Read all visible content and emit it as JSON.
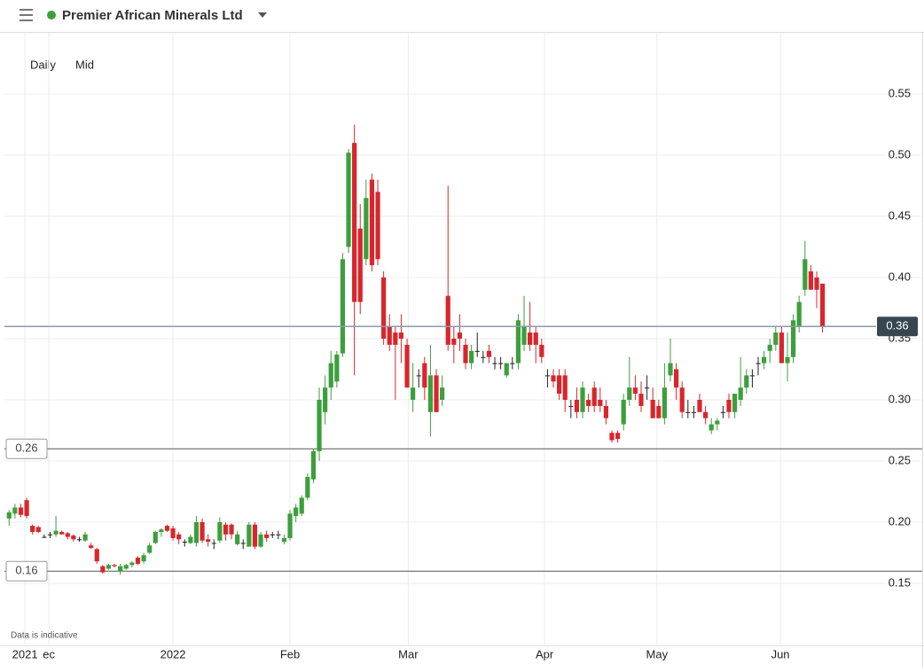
{
  "header": {
    "title": "Premier African Minerals Ltd"
  },
  "controls": {
    "interval": "Daily",
    "price": "Mid"
  },
  "chart_data": {
    "type": "candlestick",
    "note": "Data is indicative",
    "up_color": "#3c9f3c",
    "down_color": "#d8262c",
    "doji_color": "#222222",
    "grid": true,
    "ylim": [
      0.1,
      0.6
    ],
    "yticks": [
      0.15,
      {
        "value": 0.2,
        "label": "0.20"
      },
      0.25,
      {
        "value": 0.3,
        "label": "0.30"
      },
      0.35,
      {
        "value": 0.4,
        "label": "0.40"
      },
      0.45,
      {
        "value": 0.5,
        "label": "0.50"
      },
      0.55
    ],
    "xlim": [
      -28.8,
      119.7
    ],
    "xticks": [
      {
        "value": -25.3,
        "label": "2021"
      },
      {
        "value": -21.2,
        "label": "ec"
      },
      {
        "value": 0,
        "label": "2022"
      },
      {
        "value": 20,
        "label": "Feb"
      },
      {
        "value": 40.2,
        "label": "Mar"
      },
      {
        "value": 63.5,
        "label": "Apr"
      },
      {
        "value": 82.7,
        "label": "May"
      },
      {
        "value": 103.8,
        "label": "Jun"
      }
    ],
    "price_line": 0.36,
    "levels": [
      0.26,
      0.16
    ],
    "x": [
      -28,
      -27,
      -26,
      -25,
      -24,
      -23,
      -22,
      -21,
      -20,
      -19,
      -18,
      -17,
      -16,
      -15,
      -14,
      -13,
      -12,
      -11,
      -10,
      -9,
      -8,
      -7,
      -6,
      -5,
      -4,
      -3,
      -2,
      -1,
      0,
      1,
      2,
      3,
      4,
      5,
      6,
      7,
      8,
      9,
      10,
      11,
      12,
      13,
      14,
      15,
      16,
      17,
      18,
      19,
      20,
      21,
      22,
      23,
      24,
      25,
      26,
      27,
      28,
      29,
      30,
      31,
      32,
      33,
      34,
      35,
      36,
      37,
      38,
      39,
      40,
      41,
      42,
      43,
      44,
      45,
      46,
      47,
      48,
      49,
      50,
      51,
      52,
      53,
      54,
      55,
      56,
      57,
      58,
      59,
      60,
      61,
      62,
      63,
      64,
      65,
      66,
      67,
      68,
      69,
      70,
      71,
      72,
      73,
      74,
      75,
      76,
      77,
      78,
      79,
      80,
      81,
      82,
      83,
      84,
      85,
      86,
      87,
      88,
      89,
      90,
      91,
      92,
      93,
      94,
      95,
      96,
      97,
      98,
      99,
      100,
      101,
      102,
      103,
      104,
      105,
      106,
      107,
      108,
      109,
      110,
      111
    ],
    "open": [
      0.203,
      0.207,
      0.212,
      0.218,
      0.197,
      0.196,
      0.188,
      0.19,
      0.19,
      0.192,
      0.191,
      0.189,
      0.186,
      0.185,
      0.181,
      0.178,
      0.164,
      0.162,
      0.165,
      0.16,
      0.162,
      0.165,
      0.171,
      0.168,
      0.175,
      0.183,
      0.192,
      0.197,
      0.195,
      0.19,
      0.184,
      0.183,
      0.183,
      0.2,
      0.186,
      0.183,
      0.185,
      0.198,
      0.198,
      0.182,
      0.183,
      0.18,
      0.198,
      0.18,
      0.19,
      0.19,
      0.19,
      0.184,
      0.187,
      0.205,
      0.207,
      0.22,
      0.235,
      0.258,
      0.29,
      0.31,
      0.315,
      0.338,
      0.425,
      0.51,
      0.44,
      0.415,
      0.48,
      0.47,
      0.4,
      0.36,
      0.355,
      0.355,
      0.345,
      0.3,
      0.32,
      0.33,
      0.29,
      0.32,
      0.3,
      0.385,
      0.35,
      0.355,
      0.345,
      0.33,
      0.34,
      0.335,
      0.34,
      0.33,
      0.33,
      0.32,
      0.33,
      0.33,
      0.345,
      0.355,
      0.355,
      0.345,
      0.32,
      0.32,
      0.32,
      0.32,
      0.295,
      0.3,
      0.29,
      0.3,
      0.31,
      0.3,
      0.295,
      0.273,
      0.273,
      0.28,
      0.3,
      0.31,
      0.305,
      0.31,
      0.3,
      0.295,
      0.285,
      0.32,
      0.325,
      0.31,
      0.29,
      0.29,
      0.3,
      0.29,
      0.275,
      0.28,
      0.29,
      0.3,
      0.29,
      0.3,
      0.31,
      0.32,
      0.33,
      0.33,
      0.34,
      0.345,
      0.355,
      0.33,
      0.335,
      0.36,
      0.39,
      0.405,
      0.4,
      0.395
    ],
    "high": [
      0.21,
      0.215,
      0.215,
      0.22,
      0.198,
      0.197,
      0.19,
      0.192,
      0.205,
      0.193,
      0.192,
      0.19,
      0.188,
      0.192,
      0.183,
      0.179,
      0.165,
      0.166,
      0.166,
      0.166,
      0.166,
      0.168,
      0.172,
      0.175,
      0.183,
      0.193,
      0.195,
      0.198,
      0.197,
      0.192,
      0.186,
      0.19,
      0.205,
      0.203,
      0.19,
      0.186,
      0.204,
      0.2,
      0.199,
      0.193,
      0.186,
      0.2,
      0.2,
      0.192,
      0.193,
      0.192,
      0.193,
      0.19,
      0.21,
      0.215,
      0.222,
      0.24,
      0.26,
      0.31,
      0.32,
      0.34,
      0.34,
      0.42,
      0.505,
      0.525,
      0.46,
      0.48,
      0.485,
      0.48,
      0.405,
      0.37,
      0.36,
      0.37,
      0.35,
      0.33,
      0.325,
      0.335,
      0.345,
      0.325,
      0.32,
      0.475,
      0.36,
      0.37,
      0.35,
      0.345,
      0.355,
      0.34,
      0.345,
      0.335,
      0.335,
      0.33,
      0.335,
      0.37,
      0.385,
      0.38,
      0.36,
      0.35,
      0.325,
      0.325,
      0.325,
      0.325,
      0.3,
      0.31,
      0.315,
      0.305,
      0.315,
      0.31,
      0.3,
      0.275,
      0.275,
      0.305,
      0.335,
      0.32,
      0.315,
      0.32,
      0.31,
      0.3,
      0.33,
      0.35,
      0.33,
      0.315,
      0.3,
      0.295,
      0.305,
      0.295,
      0.285,
      0.285,
      0.295,
      0.305,
      0.305,
      0.335,
      0.325,
      0.325,
      0.335,
      0.34,
      0.35,
      0.36,
      0.36,
      0.355,
      0.37,
      0.385,
      0.43,
      0.41,
      0.405,
      0.395
    ],
    "low": [
      0.197,
      0.203,
      0.204,
      0.203,
      0.19,
      0.191,
      0.187,
      0.187,
      0.188,
      0.19,
      0.186,
      0.184,
      0.184,
      0.184,
      0.178,
      0.166,
      0.158,
      0.161,
      0.163,
      0.157,
      0.161,
      0.163,
      0.165,
      0.166,
      0.174,
      0.182,
      0.188,
      0.192,
      0.185,
      0.182,
      0.18,
      0.182,
      0.18,
      0.183,
      0.18,
      0.178,
      0.183,
      0.185,
      0.186,
      0.181,
      0.178,
      0.18,
      0.178,
      0.179,
      0.184,
      0.187,
      0.186,
      0.182,
      0.185,
      0.2,
      0.205,
      0.218,
      0.232,
      0.25,
      0.28,
      0.3,
      0.31,
      0.335,
      0.42,
      0.32,
      0.37,
      0.41,
      0.405,
      0.41,
      0.345,
      0.34,
      0.3,
      0.33,
      0.31,
      0.29,
      0.31,
      0.3,
      0.27,
      0.29,
      0.295,
      0.34,
      0.33,
      0.34,
      0.325,
      0.325,
      0.335,
      0.33,
      0.33,
      0.325,
      0.325,
      0.318,
      0.325,
      0.325,
      0.34,
      0.34,
      0.33,
      0.33,
      0.31,
      0.31,
      0.3,
      0.29,
      0.285,
      0.285,
      0.285,
      0.29,
      0.29,
      0.29,
      0.28,
      0.265,
      0.265,
      0.275,
      0.295,
      0.3,
      0.29,
      0.3,
      0.285,
      0.285,
      0.28,
      0.315,
      0.3,
      0.285,
      0.285,
      0.285,
      0.29,
      0.28,
      0.272,
      0.275,
      0.285,
      0.285,
      0.285,
      0.295,
      0.305,
      0.31,
      0.32,
      0.325,
      0.33,
      0.34,
      0.33,
      0.315,
      0.33,
      0.355,
      0.385,
      0.39,
      0.375,
      0.355
    ],
    "close": [
      0.208,
      0.212,
      0.206,
      0.205,
      0.192,
      0.192,
      0.188,
      0.19,
      0.193,
      0.19,
      0.188,
      0.186,
      0.186,
      0.19,
      0.179,
      0.168,
      0.159,
      0.165,
      0.164,
      0.164,
      0.165,
      0.167,
      0.166,
      0.173,
      0.181,
      0.192,
      0.194,
      0.193,
      0.187,
      0.186,
      0.184,
      0.188,
      0.2,
      0.185,
      0.184,
      0.183,
      0.2,
      0.19,
      0.19,
      0.19,
      0.183,
      0.198,
      0.18,
      0.19,
      0.187,
      0.19,
      0.19,
      0.187,
      0.207,
      0.212,
      0.22,
      0.237,
      0.258,
      0.3,
      0.31,
      0.33,
      0.337,
      0.415,
      0.502,
      0.38,
      0.38,
      0.465,
      0.41,
      0.415,
      0.35,
      0.345,
      0.345,
      0.35,
      0.31,
      0.31,
      0.32,
      0.31,
      0.32,
      0.29,
      0.31,
      0.345,
      0.345,
      0.35,
      0.33,
      0.34,
      0.34,
      0.335,
      0.335,
      0.33,
      0.33,
      0.33,
      0.33,
      0.365,
      0.36,
      0.345,
      0.345,
      0.335,
      0.32,
      0.315,
      0.305,
      0.3,
      0.295,
      0.29,
      0.31,
      0.295,
      0.295,
      0.295,
      0.285,
      0.267,
      0.268,
      0.3,
      0.31,
      0.305,
      0.295,
      0.31,
      0.285,
      0.285,
      0.31,
      0.33,
      0.31,
      0.29,
      0.29,
      0.29,
      0.29,
      0.285,
      0.28,
      0.283,
      0.29,
      0.29,
      0.305,
      0.31,
      0.32,
      0.32,
      0.33,
      0.335,
      0.345,
      0.355,
      0.33,
      0.335,
      0.365,
      0.38,
      0.415,
      0.39,
      0.39,
      0.36
    ]
  }
}
